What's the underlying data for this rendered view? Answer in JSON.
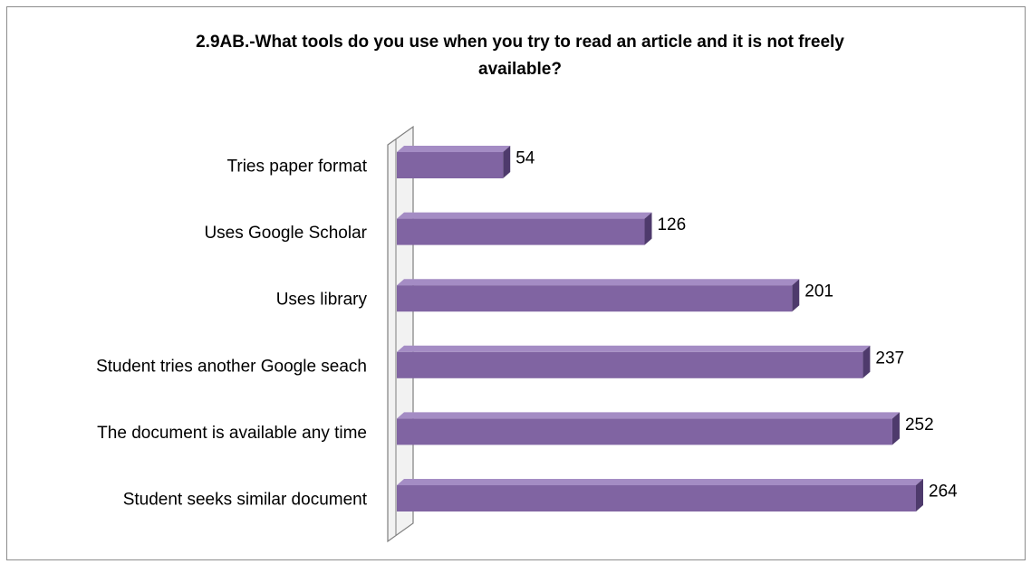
{
  "chart_data": {
    "type": "bar",
    "orientation": "horizontal",
    "style": "3d",
    "title_lines": [
      "2.9AB.-What tools do you use when you try to read an article and it is not freely",
      "available?"
    ],
    "categories": [
      "Tries paper format",
      "Uses Google Scholar",
      "Uses library",
      "Student tries another Google seach",
      "The document is available any time",
      "Student seeks similar document"
    ],
    "values": [
      54,
      126,
      201,
      237,
      252,
      264
    ],
    "data_labels": [
      "54",
      "126",
      "201",
      "237",
      "252",
      "264"
    ],
    "xlim": [
      0,
      264
    ],
    "grid": false,
    "legend": "none",
    "colors": {
      "bar_front": "#8064A2",
      "bar_top": "#A48CC4",
      "bar_side": "#4E3A6C",
      "wall": "#F2F2F2",
      "wall_stroke": "#7F7F7F"
    }
  }
}
